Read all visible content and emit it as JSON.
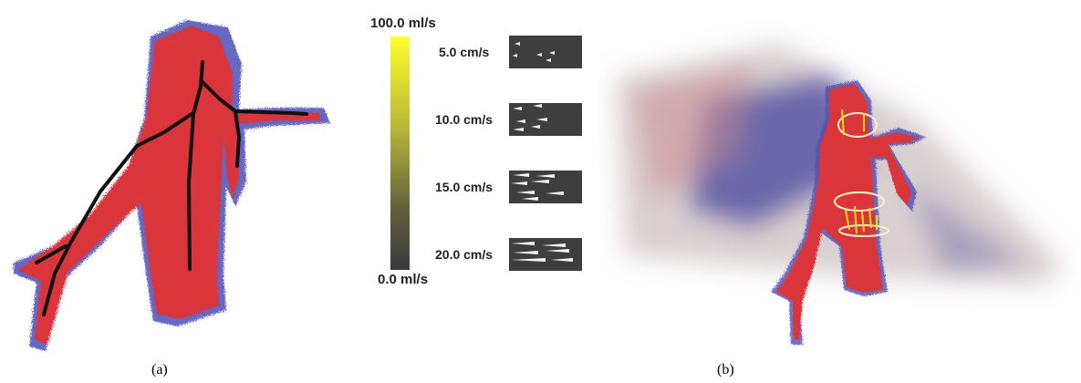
{
  "captions": {
    "a": "(a)",
    "b": "(b)"
  },
  "colorbar": {
    "max_label": "100.0 ml/s",
    "min_label": "0.0 ml/s",
    "top_color": "#ffff2a",
    "bottom_color": "#3a3a3a"
  },
  "speed_legend": [
    {
      "label": "5.0 cm/s"
    },
    {
      "label": "10.0 cm/s"
    },
    {
      "label": "15.0 cm/s"
    },
    {
      "label": "20.0 cm/s"
    }
  ],
  "colors": {
    "vessel_red": "#d9343a",
    "vessel_blue": "#4a4fb8",
    "centerline": "#111111",
    "probe": "#f5f2c8",
    "flow_yellow": "#f3dc1a"
  }
}
